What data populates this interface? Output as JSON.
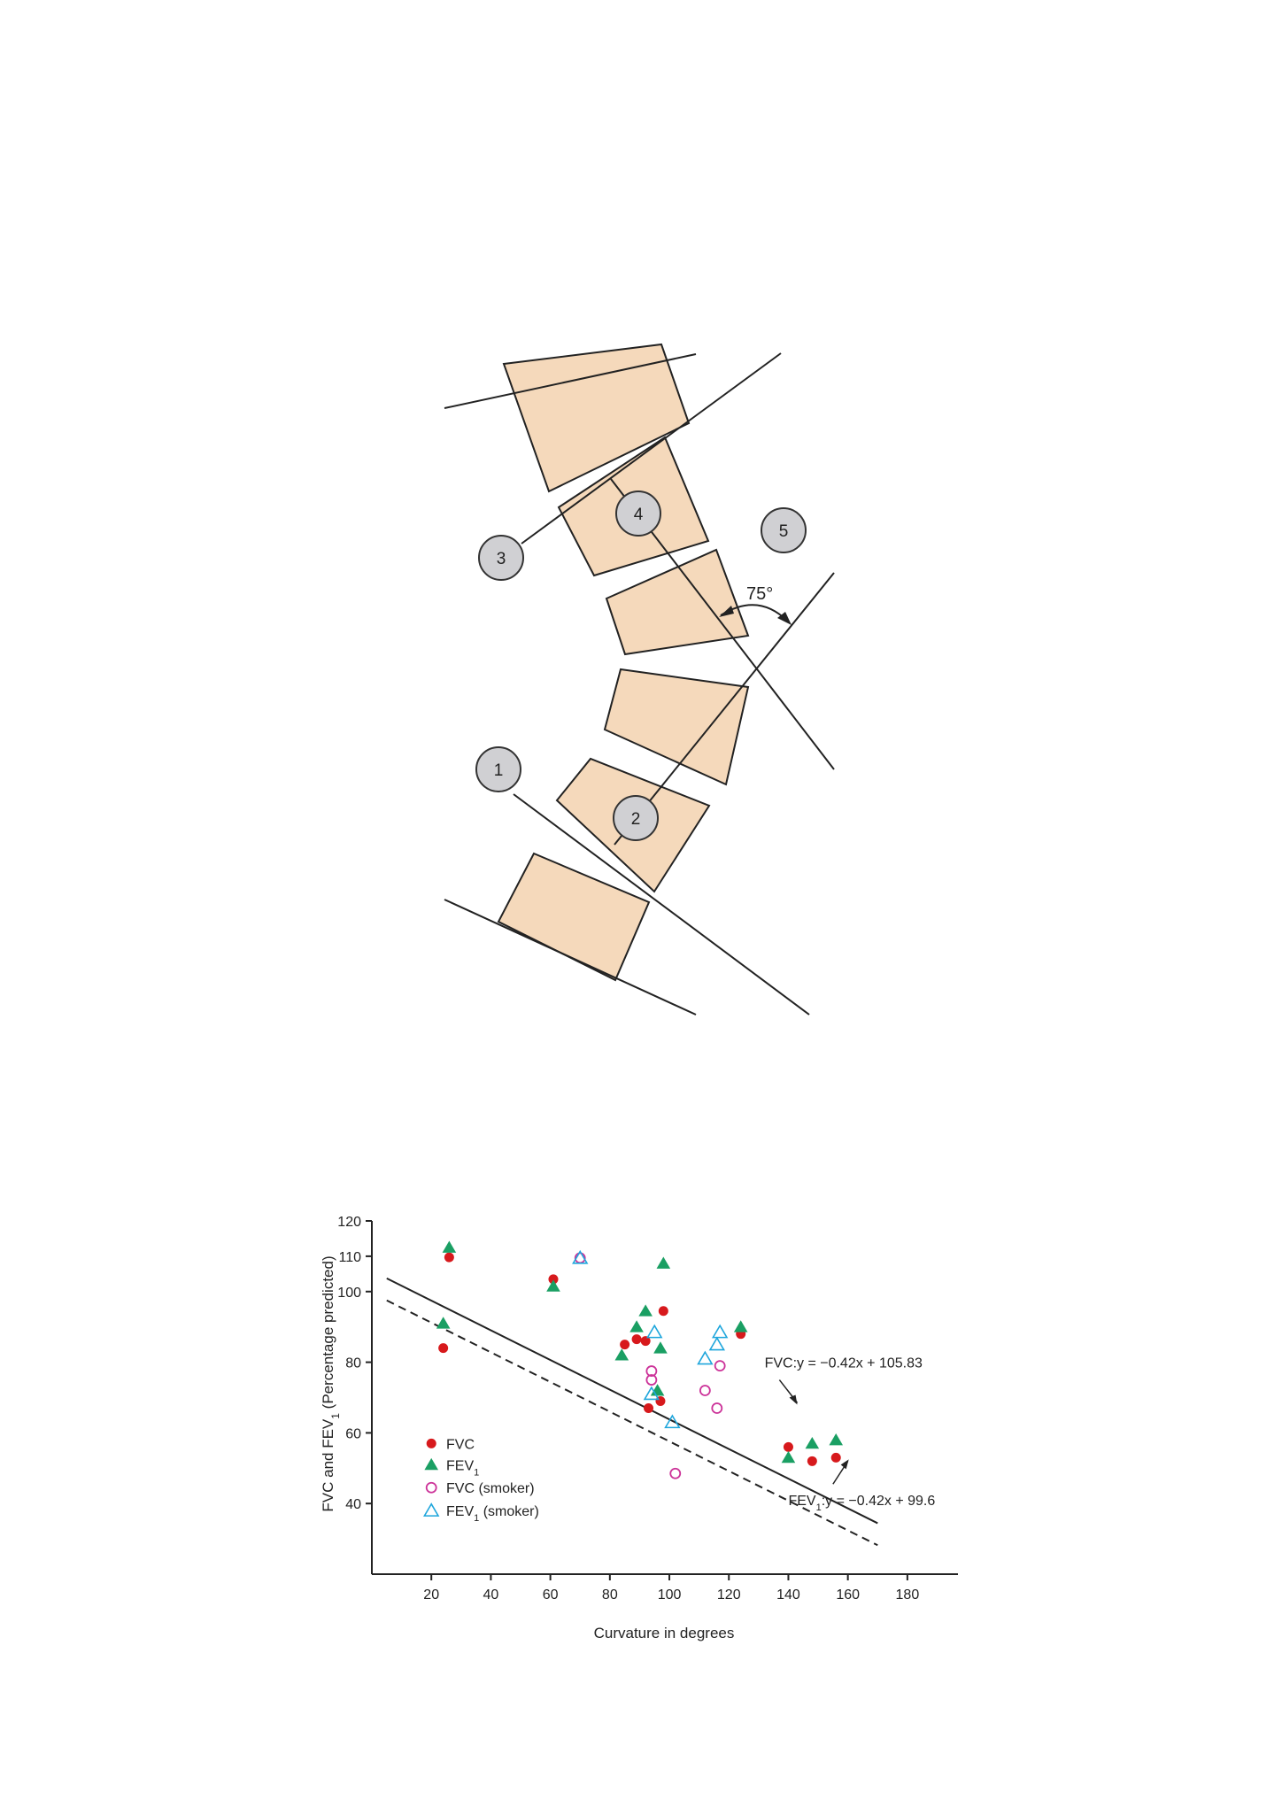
{
  "diagram": {
    "markers": [
      "1",
      "2",
      "3",
      "4",
      "5"
    ],
    "angle_label": "75°"
  },
  "chart_data": {
    "type": "scatter",
    "title": "",
    "xlabel": "Curvature in degrees",
    "ylabel": "FVC and FEV1 (Percentage predicted)",
    "xlim": [
      0,
      197
    ],
    "ylim": [
      20,
      120
    ],
    "xticks": [
      20,
      40,
      60,
      80,
      100,
      120,
      140,
      160,
      180
    ],
    "yticks": [
      40,
      60,
      80,
      100,
      110,
      120
    ],
    "legend_position": "bottom-left",
    "colors": {
      "FVC": "#d7191c",
      "FEV1": "#1a9f63",
      "FVC_smoker": "#cc3399",
      "FEV1_smoker": "#1fa6dc"
    },
    "series": [
      {
        "name": "FVC",
        "legend": "FVC",
        "marker": "filled-circle",
        "color": "#d7191c",
        "points": [
          [
            26,
            109.7
          ],
          [
            24,
            84
          ],
          [
            61,
            103.5
          ],
          [
            85,
            85
          ],
          [
            89,
            86.5
          ],
          [
            92,
            86
          ],
          [
            98,
            94.5
          ],
          [
            93,
            67
          ],
          [
            97,
            69
          ],
          [
            124,
            88
          ],
          [
            140,
            56
          ],
          [
            148,
            52
          ],
          [
            156,
            53
          ]
        ]
      },
      {
        "name": "FEV1",
        "legend": "FEV",
        "legend_sub": "1",
        "marker": "filled-triangle",
        "color": "#1a9f63",
        "points": [
          [
            26,
            112.5
          ],
          [
            24,
            91
          ],
          [
            61,
            101.5
          ],
          [
            84,
            82
          ],
          [
            89,
            90
          ],
          [
            92,
            94.5
          ],
          [
            97,
            84
          ],
          [
            98,
            108
          ],
          [
            96,
            72
          ],
          [
            124,
            90
          ],
          [
            140,
            53
          ],
          [
            148,
            57
          ],
          [
            156,
            58
          ]
        ]
      },
      {
        "name": "FVC (smoker)",
        "legend": "FVC (smoker)",
        "marker": "open-circle",
        "color": "#cc3399",
        "points": [
          [
            70,
            109.5
          ],
          [
            94,
            77.5
          ],
          [
            94,
            75
          ],
          [
            112,
            72
          ],
          [
            117,
            79
          ],
          [
            116,
            67
          ],
          [
            102,
            48.5
          ]
        ]
      },
      {
        "name": "FEV1 (smoker)",
        "legend": "FEV",
        "legend_sub": "1",
        "legend_tail": " (smoker)",
        "marker": "open-triangle",
        "color": "#1fa6dc",
        "points": [
          [
            70,
            109.5
          ],
          [
            95,
            88.5
          ],
          [
            94,
            71
          ],
          [
            101,
            63
          ],
          [
            112,
            81
          ],
          [
            116,
            85
          ],
          [
            117,
            88.5
          ]
        ]
      }
    ],
    "fits": [
      {
        "name": "FVC fit",
        "style": "solid",
        "slope": -0.42,
        "intercept": 105.83,
        "x_range": [
          5,
          170
        ],
        "label": "FVC:y = −0.42x + 105.83"
      },
      {
        "name": "FEV1 fit",
        "style": "dashed",
        "slope": -0.42,
        "intercept": 99.6,
        "x_range": [
          5,
          170
        ],
        "label_main": "FEV",
        "label_sub": "1",
        "label_tail": ":y = −0.42x + 99.6"
      }
    ]
  }
}
